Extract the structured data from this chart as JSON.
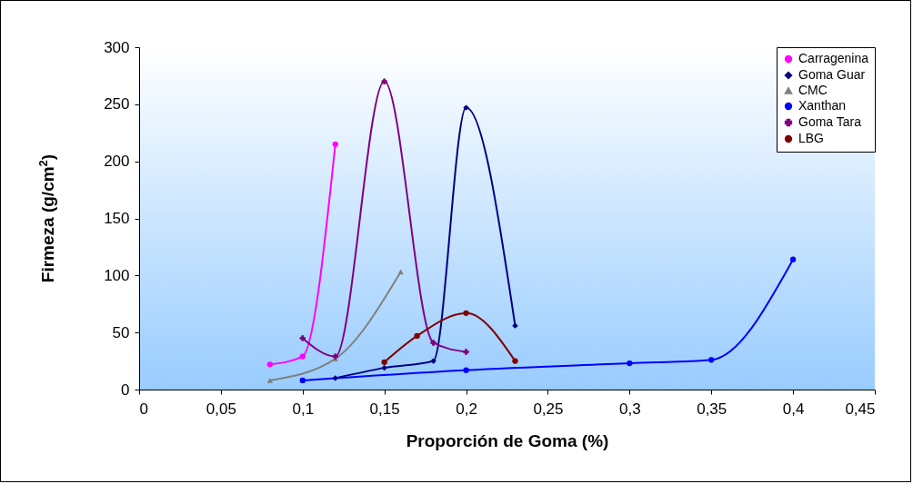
{
  "chart_data": {
    "type": "line",
    "xlabel": "Proporción de Goma (%)",
    "ylabel": "Firmeza (g/cm$^{2}$)",
    "xlim": [
      0,
      0.45
    ],
    "xticks": [
      0,
      {
        "value": 0.05,
        "label": "0,05"
      },
      {
        "value": 0.1,
        "label": "0,1"
      },
      {
        "value": 0.15,
        "label": "0,15"
      },
      {
        "value": 0.2,
        "label": "0,2"
      },
      {
        "value": 0.25,
        "label": "0,25"
      },
      {
        "value": 0.3,
        "label": "0,3"
      },
      {
        "value": 0.35,
        "label": "0,35"
      },
      {
        "value": 0.4,
        "label": "0,4"
      },
      {
        "value": 0.45,
        "label": "0,45"
      }
    ],
    "ylim": [
      0,
      300
    ],
    "yticks": [
      0,
      50,
      100,
      150,
      200,
      250,
      300
    ],
    "grid": false,
    "legend": "top right",
    "series": [
      {
        "name": "Carragenina",
        "color": "#ff00ff",
        "marker": "circle",
        "x": [
          0.08,
          0.1,
          0.12
        ],
        "values": [
          22,
          29,
          215
        ]
      },
      {
        "name": "Goma Guar",
        "color": "#000080",
        "marker": "diamond",
        "x": [
          0.12,
          0.15,
          0.18,
          0.2,
          0.23
        ],
        "values": [
          10,
          19,
          25,
          247,
          56
        ]
      },
      {
        "name": "CMC",
        "color": "#808080",
        "marker": "triangle",
        "x": [
          0.08,
          0.12,
          0.16
        ],
        "values": [
          8,
          27,
          103
        ]
      },
      {
        "name": "Xanthan",
        "color": "#0000ff",
        "marker": "circle",
        "x": [
          0.1,
          0.2,
          0.3,
          0.35,
          0.4
        ],
        "values": [
          8,
          17,
          23,
          26,
          114
        ]
      },
      {
        "name": "Goma Tara",
        "color": "#800080",
        "marker": "cross",
        "x": [
          0.1,
          0.12,
          0.15,
          0.18,
          0.2
        ],
        "values": [
          45,
          29,
          270,
          41,
          33
        ]
      },
      {
        "name": "LBG",
        "color": "#800000",
        "marker": "circle",
        "x": [
          0.15,
          0.17,
          0.2,
          0.23
        ],
        "values": [
          24,
          47,
          67,
          25
        ]
      }
    ]
  }
}
